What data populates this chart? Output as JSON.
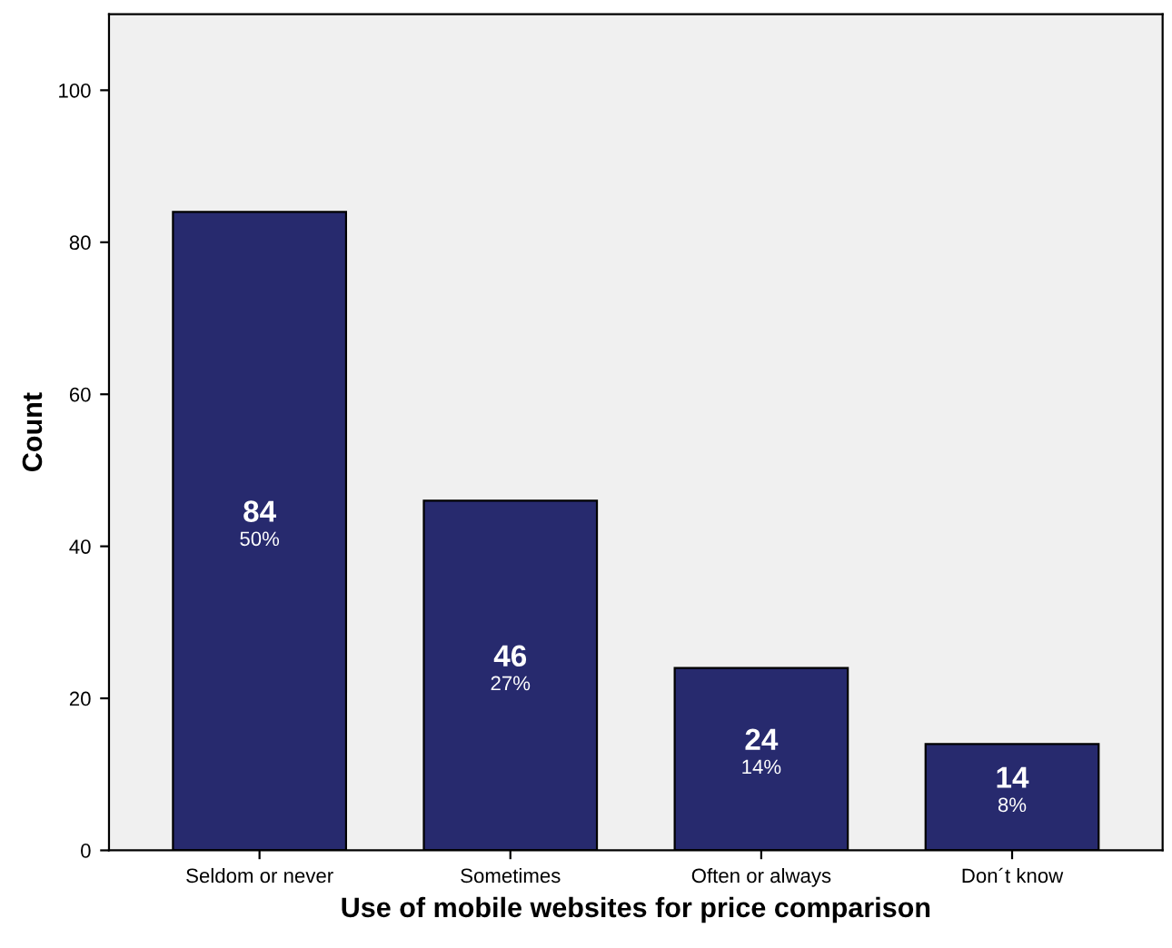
{
  "chart_data": {
    "type": "bar",
    "xlabel": "Use of mobile websites for price comparison",
    "ylabel": "Count",
    "categories": [
      "Seldom or never",
      "Sometimes",
      "Often or always",
      "Don´t know"
    ],
    "values": [
      84,
      46,
      24,
      14
    ],
    "color": "#272a6e",
    "value_labels": [
      "84\n50%",
      "46\n27%",
      "24\n14%",
      "14\n8%"
    ],
    "ylim": [
      0,
      110
    ],
    "yticks": [
      0,
      20,
      40,
      60,
      80,
      100
    ],
    "grid": false,
    "legend": false
  }
}
